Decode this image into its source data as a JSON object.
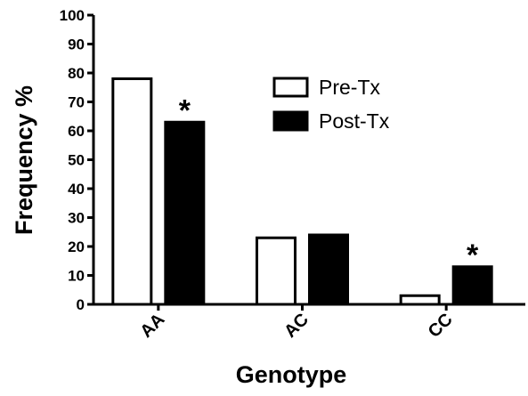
{
  "chart_data": {
    "type": "bar",
    "categories": [
      "AA",
      "AC",
      "CC"
    ],
    "series": [
      {
        "name": "Pre-Tx",
        "values": [
          78,
          23,
          3
        ],
        "fill": "#ffffff",
        "stroke": "#000000"
      },
      {
        "name": "Post-Tx",
        "values": [
          63,
          24,
          13
        ],
        "fill": "#000000",
        "stroke": "#000000"
      }
    ],
    "annotations": [
      {
        "category": "AA",
        "series": "Post-Tx",
        "text": "*"
      },
      {
        "category": "CC",
        "series": "Post-Tx",
        "text": "*"
      }
    ],
    "xlabel": "Genotype",
    "ylabel": "Frequency %",
    "ylim": [
      0,
      100
    ],
    "yticks": [
      0,
      10,
      20,
      30,
      40,
      50,
      60,
      70,
      80,
      90,
      100
    ],
    "grid": false,
    "legend_position": "top-right"
  }
}
